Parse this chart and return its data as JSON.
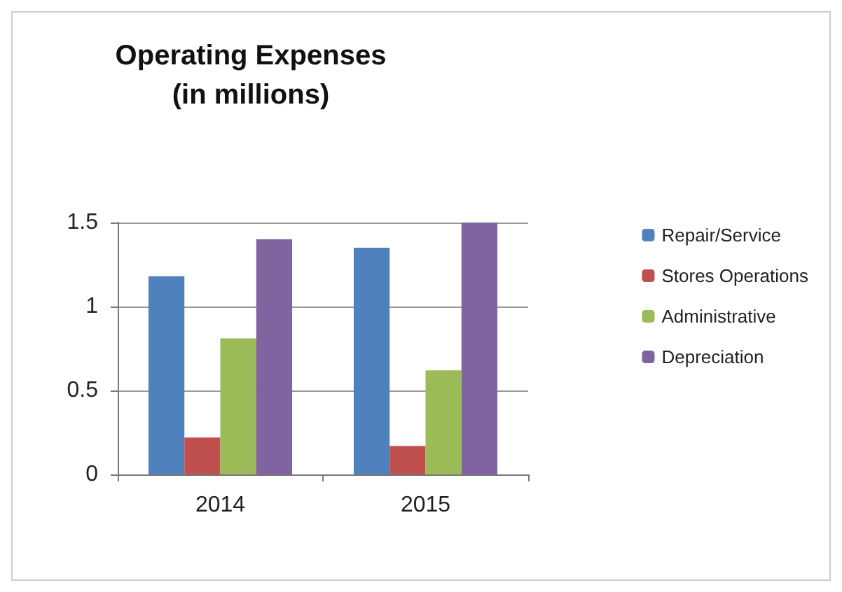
{
  "chart_data": {
    "type": "bar",
    "title": "Operating Expenses\n(in millions)",
    "categories": [
      "2014",
      "2015"
    ],
    "series": [
      {
        "name": "Repair/Service",
        "color": "#4f81bd",
        "values": [
          1.18,
          1.35
        ]
      },
      {
        "name": "Stores Operations",
        "color": "#c0504d",
        "values": [
          0.22,
          0.17
        ]
      },
      {
        "name": "Administrative",
        "color": "#9bbb59",
        "values": [
          0.81,
          0.62
        ]
      },
      {
        "name": "Depreciation",
        "color": "#8064a2",
        "values": [
          1.4,
          1.5
        ]
      }
    ],
    "ylim": [
      0,
      1.5
    ],
    "yticks": [
      0,
      0.5,
      1,
      1.5
    ],
    "grid": "y",
    "legend": "right"
  }
}
